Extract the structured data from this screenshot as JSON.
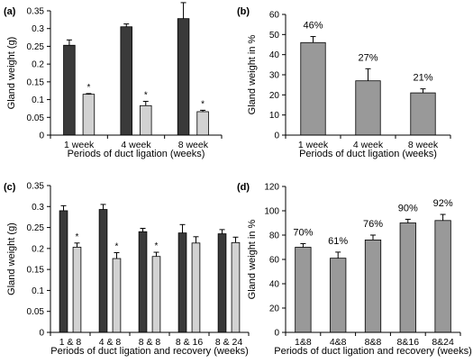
{
  "colors": {
    "dark": "#3a3a3a",
    "light": "#d2d2d2",
    "gray": "#999999",
    "axis": "#000000"
  },
  "chart_data": [
    {
      "panel": "(a)",
      "type": "bar",
      "ylabel": "Gland weight (g)",
      "xlabel": "Periods of duct ligation (weeks)",
      "categories": [
        "1 week",
        "4 week",
        "8 week"
      ],
      "ylim": [
        0,
        0.35
      ],
      "yticks": [
        "0",
        "0.05",
        "0.1",
        "0.15",
        "0.2",
        "0.25",
        "0.3",
        "0.35"
      ],
      "series": [
        {
          "color": "dark",
          "values": [
            0.253,
            0.305,
            0.328
          ],
          "errors": [
            0.015,
            0.008,
            0.045
          ],
          "marks": [
            "",
            "",
            ""
          ]
        },
        {
          "color": "light",
          "values": [
            0.115,
            0.083,
            0.066
          ],
          "errors": [
            0.002,
            0.012,
            0.004
          ],
          "marks": [
            "*",
            "*",
            "*"
          ]
        }
      ]
    },
    {
      "panel": "(b)",
      "type": "bar",
      "ylabel": "Gland weight in %",
      "xlabel": "Periods of duct ligation (weeks)",
      "categories": [
        "1 week",
        "4 week",
        "8 week"
      ],
      "ylim": [
        0,
        60
      ],
      "yticks": [
        "0",
        "10",
        "20",
        "30",
        "40",
        "50",
        "60"
      ],
      "series": [
        {
          "color": "gray",
          "values": [
            46,
            27,
            21
          ],
          "errors": [
            3,
            6,
            2
          ],
          "labels": [
            "46%",
            "27%",
            "21%"
          ]
        }
      ]
    },
    {
      "panel": "(c)",
      "type": "bar",
      "ylabel": "Gland weight (g)",
      "xlabel": "Periods of duct ligation and recovery (weeks)",
      "categories": [
        "1 & 8",
        "4 & 8",
        "8 & 8",
        "8 & 16",
        "8 & 24"
      ],
      "ylim": [
        0,
        0.35
      ],
      "yticks": [
        "0",
        "0.05",
        "0.1",
        "0.15",
        "0.2",
        "0.25",
        "0.3",
        "0.35"
      ],
      "series": [
        {
          "color": "dark",
          "values": [
            0.29,
            0.293,
            0.24,
            0.237,
            0.235
          ],
          "errors": [
            0.012,
            0.012,
            0.008,
            0.02,
            0.01
          ],
          "marks": [
            "",
            "",
            "",
            "",
            ""
          ]
        },
        {
          "color": "light",
          "values": [
            0.203,
            0.176,
            0.181,
            0.213,
            0.214
          ],
          "errors": [
            0.01,
            0.014,
            0.01,
            0.015,
            0.013
          ],
          "marks": [
            "*",
            "*",
            "*",
            "",
            ""
          ]
        }
      ]
    },
    {
      "panel": "(d)",
      "type": "bar",
      "ylabel": "Gland weight in %",
      "xlabel": "Periods of duct ligation and recovery (weeks)",
      "categories": [
        "1&8",
        "4&8",
        "8&8",
        "8&16",
        "8&24"
      ],
      "ylim": [
        0,
        120
      ],
      "yticks": [
        "0",
        "20",
        "40",
        "60",
        "80",
        "100",
        "120"
      ],
      "series": [
        {
          "color": "gray",
          "values": [
            70,
            61,
            76,
            90,
            92
          ],
          "errors": [
            3,
            5,
            4,
            3,
            5
          ],
          "labels": [
            "70%",
            "61%",
            "76%",
            "90%",
            "92%"
          ]
        }
      ]
    }
  ]
}
